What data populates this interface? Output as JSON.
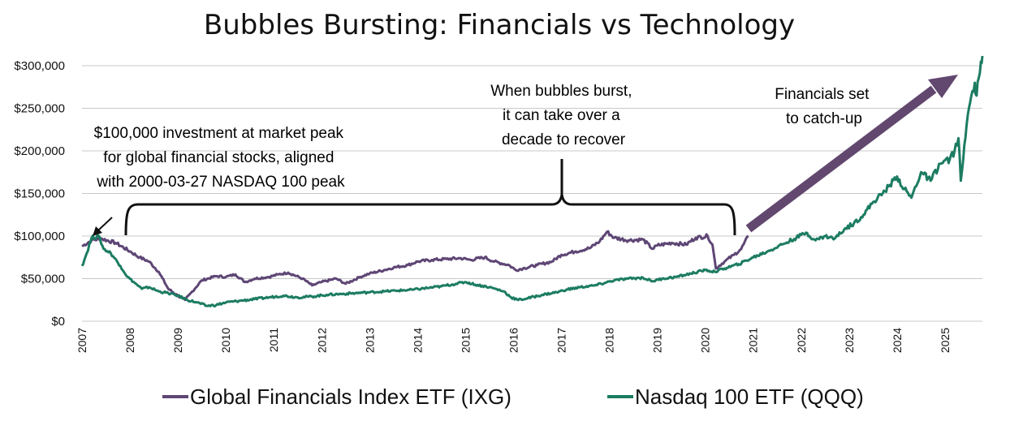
{
  "colors": {
    "ixg": "#5e4675",
    "qqq": "#1c7c62",
    "arrow": "#62476f",
    "grid": "#c8c8c8",
    "text": "#111111"
  },
  "chart_data": {
    "type": "line",
    "title": "Bubbles Bursting: Financials vs Technology",
    "xlabel": "",
    "ylabel": "",
    "xlim": [
      2007,
      2025.78
    ],
    "ylim": [
      0,
      300000
    ],
    "x_ticks": [
      "2007",
      "2008",
      "2009",
      "2010",
      "2011",
      "2012",
      "2013",
      "2014",
      "2015",
      "2016",
      "2017",
      "2018",
      "2019",
      "2020",
      "2021",
      "2022",
      "2023",
      "2024",
      "2025"
    ],
    "y_ticks": [
      {
        "value": 0,
        "label": "$0"
      },
      {
        "value": 50000,
        "label": "$50,000"
      },
      {
        "value": 100000,
        "label": "$100,000"
      },
      {
        "value": 150000,
        "label": "$150,000"
      },
      {
        "value": 200000,
        "label": "$200,000"
      },
      {
        "value": 250000,
        "label": "$250,000"
      },
      {
        "value": 300000,
        "label": "$300,000"
      }
    ],
    "grid": "horizontal",
    "legend_position": "bottom",
    "series": [
      {
        "name": "Global Financials Index ETF (IXG)",
        "color": "#5e4675",
        "points": [
          [
            2007.0,
            88000
          ],
          [
            2007.2,
            95000
          ],
          [
            2007.4,
            97000
          ],
          [
            2007.7,
            92000
          ],
          [
            2008.0,
            82000
          ],
          [
            2008.2,
            75000
          ],
          [
            2008.4,
            70000
          ],
          [
            2008.6,
            58000
          ],
          [
            2008.8,
            38000
          ],
          [
            2009.0,
            30000
          ],
          [
            2009.15,
            25000
          ],
          [
            2009.3,
            35000
          ],
          [
            2009.5,
            48000
          ],
          [
            2009.8,
            53000
          ],
          [
            2010.0,
            52000
          ],
          [
            2010.2,
            55000
          ],
          [
            2010.4,
            46000
          ],
          [
            2010.6,
            50000
          ],
          [
            2010.9,
            52000
          ],
          [
            2011.1,
            55000
          ],
          [
            2011.3,
            57000
          ],
          [
            2011.6,
            50000
          ],
          [
            2011.8,
            42000
          ],
          [
            2012.0,
            46000
          ],
          [
            2012.3,
            50000
          ],
          [
            2012.5,
            44000
          ],
          [
            2012.8,
            52000
          ],
          [
            2013.0,
            56000
          ],
          [
            2013.3,
            60000
          ],
          [
            2013.5,
            63000
          ],
          [
            2013.8,
            66000
          ],
          [
            2014.0,
            70000
          ],
          [
            2014.3,
            72000
          ],
          [
            2014.6,
            73000
          ],
          [
            2014.9,
            74000
          ],
          [
            2015.1,
            72000
          ],
          [
            2015.4,
            75000
          ],
          [
            2015.6,
            70000
          ],
          [
            2015.9,
            66000
          ],
          [
            2016.05,
            60000
          ],
          [
            2016.2,
            62000
          ],
          [
            2016.5,
            66000
          ],
          [
            2016.8,
            70000
          ],
          [
            2017.0,
            78000
          ],
          [
            2017.3,
            82000
          ],
          [
            2017.6,
            86000
          ],
          [
            2017.8,
            94000
          ],
          [
            2017.95,
            105000
          ],
          [
            2018.1,
            98000
          ],
          [
            2018.4,
            95000
          ],
          [
            2018.7,
            96000
          ],
          [
            2018.9,
            85000
          ],
          [
            2019.0,
            89000
          ],
          [
            2019.3,
            92000
          ],
          [
            2019.6,
            90000
          ],
          [
            2019.8,
            98000
          ],
          [
            2020.05,
            100000
          ],
          [
            2020.15,
            90000
          ],
          [
            2020.22,
            62000
          ],
          [
            2020.4,
            70000
          ],
          [
            2020.6,
            78000
          ],
          [
            2020.75,
            85000
          ],
          [
            2020.9,
            100000
          ]
        ]
      },
      {
        "name": "Nasdaq 100 ETF (QQQ)",
        "color": "#1c7c62",
        "points": [
          [
            2007.0,
            65000
          ],
          [
            2007.1,
            80000
          ],
          [
            2007.2,
            98000
          ],
          [
            2007.35,
            100000
          ],
          [
            2007.45,
            85000
          ],
          [
            2007.6,
            80000
          ],
          [
            2007.8,
            65000
          ],
          [
            2007.95,
            52000
          ],
          [
            2008.1,
            45000
          ],
          [
            2008.25,
            38000
          ],
          [
            2008.4,
            40000
          ],
          [
            2008.6,
            35000
          ],
          [
            2008.8,
            33000
          ],
          [
            2009.0,
            30000
          ],
          [
            2009.2,
            25000
          ],
          [
            2009.4,
            22000
          ],
          [
            2009.6,
            18000
          ],
          [
            2009.8,
            19000
          ],
          [
            2010.0,
            22000
          ],
          [
            2010.3,
            24000
          ],
          [
            2010.6,
            26000
          ],
          [
            2010.9,
            28000
          ],
          [
            2011.2,
            30000
          ],
          [
            2011.5,
            28000
          ],
          [
            2011.8,
            29000
          ],
          [
            2012.1,
            31000
          ],
          [
            2012.4,
            32000
          ],
          [
            2012.7,
            33000
          ],
          [
            2013.0,
            34000
          ],
          [
            2013.3,
            35000
          ],
          [
            2013.6,
            36000
          ],
          [
            2013.9,
            37000
          ],
          [
            2014.2,
            39000
          ],
          [
            2014.5,
            41000
          ],
          [
            2014.8,
            44000
          ],
          [
            2015.0,
            46000
          ],
          [
            2015.2,
            43000
          ],
          [
            2015.5,
            40000
          ],
          [
            2015.8,
            35000
          ],
          [
            2015.95,
            28000
          ],
          [
            2016.1,
            25000
          ],
          [
            2016.3,
            27000
          ],
          [
            2016.6,
            31000
          ],
          [
            2016.9,
            34000
          ],
          [
            2017.1,
            37000
          ],
          [
            2017.4,
            40000
          ],
          [
            2017.7,
            42000
          ],
          [
            2017.9,
            45000
          ],
          [
            2018.1,
            48000
          ],
          [
            2018.4,
            50000
          ],
          [
            2018.7,
            51000
          ],
          [
            2018.9,
            47000
          ],
          [
            2019.1,
            50000
          ],
          [
            2019.4,
            52000
          ],
          [
            2019.7,
            56000
          ],
          [
            2020.0,
            60000
          ],
          [
            2020.2,
            58000
          ],
          [
            2020.4,
            62000
          ],
          [
            2020.7,
            67000
          ],
          [
            2021.0,
            75000
          ],
          [
            2021.3,
            82000
          ],
          [
            2021.6,
            90000
          ],
          [
            2021.9,
            98000
          ],
          [
            2022.1,
            104000
          ],
          [
            2022.3,
            95000
          ],
          [
            2022.5,
            100000
          ],
          [
            2022.7,
            97000
          ],
          [
            2022.9,
            108000
          ],
          [
            2023.1,
            115000
          ],
          [
            2023.3,
            125000
          ],
          [
            2023.5,
            140000
          ],
          [
            2023.7,
            150000
          ],
          [
            2023.85,
            160000
          ],
          [
            2024.0,
            170000
          ],
          [
            2024.15,
            155000
          ],
          [
            2024.3,
            145000
          ],
          [
            2024.5,
            175000
          ],
          [
            2024.7,
            165000
          ],
          [
            2024.9,
            185000
          ],
          [
            2025.1,
            190000
          ],
          [
            2025.2,
            200000
          ],
          [
            2025.28,
            215000
          ],
          [
            2025.33,
            165000
          ],
          [
            2025.38,
            190000
          ],
          [
            2025.45,
            230000
          ],
          [
            2025.55,
            265000
          ],
          [
            2025.62,
            280000
          ],
          [
            2025.66,
            265000
          ],
          [
            2025.7,
            285000
          ],
          [
            2025.75,
            305000
          ],
          [
            2025.78,
            312000
          ]
        ]
      }
    ],
    "annotations": [
      {
        "id": "peak",
        "lines": [
          "$100,000 investment at market peak",
          "for global financial stocks, aligned",
          "with 2000-03-27 NASDAQ 100 peak"
        ]
      },
      {
        "id": "burst",
        "lines": [
          "When bubbles burst,",
          "it can take over a",
          "decade to recover"
        ]
      },
      {
        "id": "catchup",
        "lines": [
          "Financials set",
          "to catch-up"
        ]
      }
    ]
  }
}
